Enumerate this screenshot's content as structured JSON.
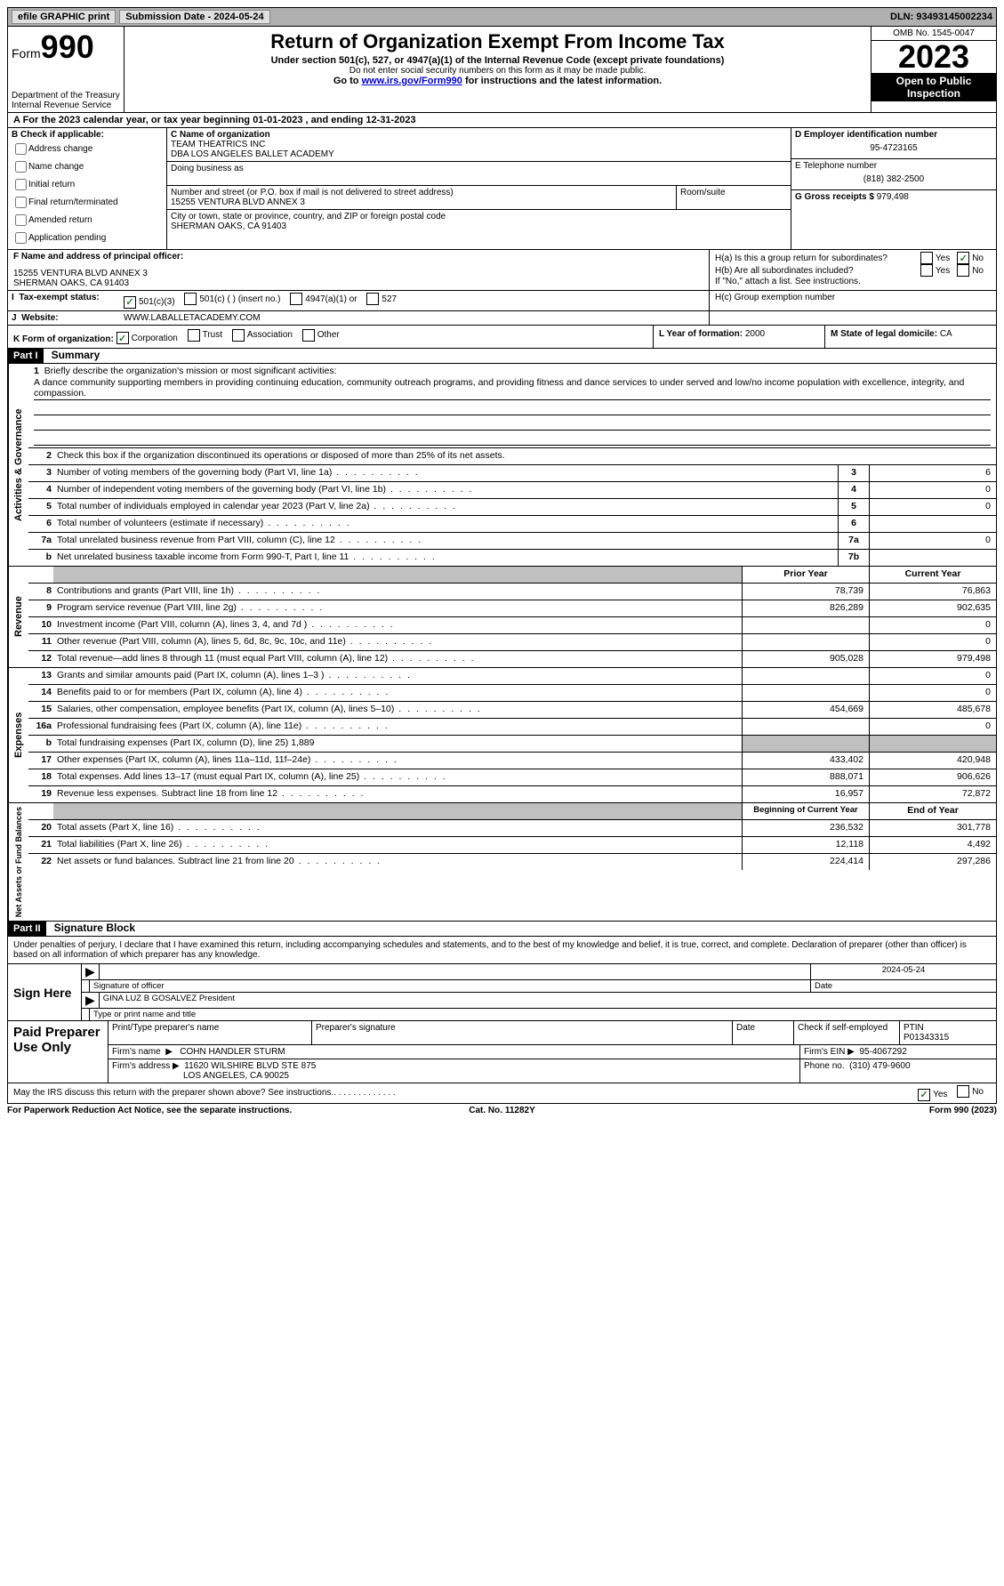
{
  "topbar": {
    "efile": "efile GRAPHIC print",
    "submission_label": "Submission Date - 2024-05-24",
    "dln_label": "DLN: 93493145002234"
  },
  "header": {
    "form_label": "Form",
    "form_number": "990",
    "dept": "Department of the Treasury",
    "irs": "Internal Revenue Service",
    "title": "Return of Organization Exempt From Income Tax",
    "subtitle": "Under section 501(c), 527, or 4947(a)(1) of the Internal Revenue Code (except private foundations)",
    "warning": "Do not enter social security numbers on this form as it may be made public.",
    "goto_pre": "Go to ",
    "goto_link": "www.irs.gov/Form990",
    "goto_post": " for instructions and the latest information.",
    "omb": "OMB No. 1545-0047",
    "year": "2023",
    "open_public": "Open to Public Inspection"
  },
  "line_a": "A  For the 2023 calendar year, or tax year beginning 01-01-2023   , and ending 12-31-2023",
  "box_b": {
    "label": "B Check if applicable:",
    "items": [
      "Address change",
      "Name change",
      "Initial return",
      "Final return/terminated",
      "Amended return",
      "Application pending"
    ]
  },
  "box_c": {
    "name_label": "C Name of organization",
    "name1": "TEAM THEATRICS INC",
    "name2": "DBA LOS ANGELES BALLET ACADEMY",
    "dba_label": "Doing business as",
    "street_label": "Number and street (or P.O. box if mail is not delivered to street address)",
    "room_label": "Room/suite",
    "street": "15255 VENTURA BLVD ANNEX 3",
    "city_label": "City or town, state or province, country, and ZIP or foreign postal code",
    "city": "SHERMAN OAKS, CA  91403"
  },
  "box_d": {
    "label": "D Employer identification number",
    "value": "95-4723165"
  },
  "box_e": {
    "label": "E Telephone number",
    "value": "(818) 382-2500"
  },
  "box_g": {
    "label": "G Gross receipts $",
    "value": "979,498"
  },
  "box_f": {
    "label": "F  Name and address of principal officer:",
    "line1": "15255 VENTURA BLVD ANNEX 3",
    "line2": "SHERMAN OAKS, CA  91403"
  },
  "box_h": {
    "ha_label": "H(a)  Is this a group return for subordinates?",
    "hb_label": "H(b)  Are all subordinates included?",
    "note": "If \"No,\" attach a list. See instructions.",
    "hc_label": "H(c)  Group exemption number",
    "yes": "Yes",
    "no": "No"
  },
  "box_i": {
    "label": "Tax-exempt status:",
    "opt1": "501(c)(3)",
    "opt2": "501(c) (  ) (insert no.)",
    "opt3": "4947(a)(1) or",
    "opt4": "527"
  },
  "box_j": {
    "label": "Website:",
    "value": "WWW.LABALLETACADEMY.COM"
  },
  "box_k": {
    "label": "K Form of organization:",
    "opts": [
      "Corporation",
      "Trust",
      "Association",
      "Other"
    ]
  },
  "box_l": {
    "label": "L Year of formation:",
    "value": "2000"
  },
  "box_m": {
    "label": "M State of legal domicile:",
    "value": "CA"
  },
  "part1": {
    "header": "Part I",
    "title": "Summary",
    "q1_label": "Briefly describe the organization's mission or most significant activities:",
    "mission": "A dance community supporting members in providing continuing education, community outreach programs, and providing fitness and dance services to under served and low/no income population with excellence, integrity, and compassion.",
    "q2": "Check this box      if the organization discontinued its operations or disposed of more than 25% of its net assets.",
    "lines_gov": [
      {
        "n": "3",
        "d": "Number of voting members of the governing body (Part VI, line 1a)",
        "box": "3",
        "v": "6"
      },
      {
        "n": "4",
        "d": "Number of independent voting members of the governing body (Part VI, line 1b)",
        "box": "4",
        "v": "0"
      },
      {
        "n": "5",
        "d": "Total number of individuals employed in calendar year 2023 (Part V, line 2a)",
        "box": "5",
        "v": "0"
      },
      {
        "n": "6",
        "d": "Total number of volunteers (estimate if necessary)",
        "box": "6",
        "v": ""
      },
      {
        "n": "7a",
        "d": "Total unrelated business revenue from Part VIII, column (C), line 12",
        "box": "7a",
        "v": "0"
      },
      {
        "n": "b",
        "nlabel": "",
        "d": "Net unrelated business taxable income from Form 990-T, Part I, line 11",
        "box": "7b",
        "v": ""
      }
    ],
    "col_prior": "Prior Year",
    "col_current": "Current Year",
    "lines_rev": [
      {
        "n": "8",
        "d": "Contributions and grants (Part VIII, line 1h)",
        "p": "78,739",
        "c": "76,863"
      },
      {
        "n": "9",
        "d": "Program service revenue (Part VIII, line 2g)",
        "p": "826,289",
        "c": "902,635"
      },
      {
        "n": "10",
        "d": "Investment income (Part VIII, column (A), lines 3, 4, and 7d )",
        "p": "",
        "c": "0"
      },
      {
        "n": "11",
        "d": "Other revenue (Part VIII, column (A), lines 5, 6d, 8c, 9c, 10c, and 11e)",
        "p": "",
        "c": "0"
      },
      {
        "n": "12",
        "d": "Total revenue—add lines 8 through 11 (must equal Part VIII, column (A), line 12)",
        "p": "905,028",
        "c": "979,498"
      }
    ],
    "lines_exp": [
      {
        "n": "13",
        "d": "Grants and similar amounts paid (Part IX, column (A), lines 1–3 )",
        "p": "",
        "c": "0"
      },
      {
        "n": "14",
        "d": "Benefits paid to or for members (Part IX, column (A), line 4)",
        "p": "",
        "c": "0"
      },
      {
        "n": "15",
        "d": "Salaries, other compensation, employee benefits (Part IX, column (A), lines 5–10)",
        "p": "454,669",
        "c": "485,678"
      },
      {
        "n": "16a",
        "d": "Professional fundraising fees (Part IX, column (A), line 11e)",
        "p": "",
        "c": "0"
      },
      {
        "n": "b",
        "d": "Total fundraising expenses (Part IX, column (D), line 25) 1,889",
        "shaded": true
      },
      {
        "n": "17",
        "d": "Other expenses (Part IX, column (A), lines 11a–11d, 11f–24e)",
        "p": "433,402",
        "c": "420,948"
      },
      {
        "n": "18",
        "d": "Total expenses. Add lines 13–17 (must equal Part IX, column (A), line 25)",
        "p": "888,071",
        "c": "906,626"
      },
      {
        "n": "19",
        "d": "Revenue less expenses. Subtract line 18 from line 12",
        "p": "16,957",
        "c": "72,872"
      }
    ],
    "col_begin": "Beginning of Current Year",
    "col_end": "End of Year",
    "lines_net": [
      {
        "n": "20",
        "d": "Total assets (Part X, line 16)",
        "p": "236,532",
        "c": "301,778"
      },
      {
        "n": "21",
        "d": "Total liabilities (Part X, line 26)",
        "p": "12,118",
        "c": "4,492"
      },
      {
        "n": "22",
        "d": "Net assets or fund balances. Subtract line 21 from line 20",
        "p": "224,414",
        "c": "297,286"
      }
    ],
    "vert_gov": "Activities & Governance",
    "vert_rev": "Revenue",
    "vert_exp": "Expenses",
    "vert_net": "Net Assets or Fund Balances"
  },
  "part2": {
    "header": "Part II",
    "title": "Signature Block",
    "declaration": "Under penalties of perjury, I declare that I have examined this return, including accompanying schedules and statements, and to the best of my knowledge and belief, it is true, correct, and complete. Declaration of preparer (other than officer) is based on all information of which preparer has any knowledge.",
    "sign_here": "Sign Here",
    "sig_officer": "Signature of officer",
    "date_label": "Date",
    "date_value": "2024-05-24",
    "officer_name": "GINA LUZ B GOSALVEZ  President",
    "type_name": "Type or print name and title",
    "paid_prep": "Paid Preparer Use Only",
    "print_name": "Print/Type preparer's name",
    "prep_sig": "Preparer's signature",
    "check_self": "Check       if self-employed",
    "ptin_label": "PTIN",
    "ptin": "P01343315",
    "firm_name_label": "Firm's name",
    "firm_name": "COHN HANDLER STURM",
    "firm_ein_label": "Firm's EIN",
    "firm_ein": "95-4067292",
    "firm_addr_label": "Firm's address",
    "firm_addr1": "11620 WILSHIRE BLVD STE 875",
    "firm_addr2": "LOS ANGELES, CA  90025",
    "phone_label": "Phone no.",
    "phone": "(310) 479-9600",
    "discuss": "May the IRS discuss this return with the preparer shown above? See instructions.",
    "yes": "Yes",
    "no": "No"
  },
  "footer": {
    "pra": "For Paperwork Reduction Act Notice, see the separate instructions.",
    "cat": "Cat. No. 11282Y",
    "form": "Form 990 (2023)"
  }
}
